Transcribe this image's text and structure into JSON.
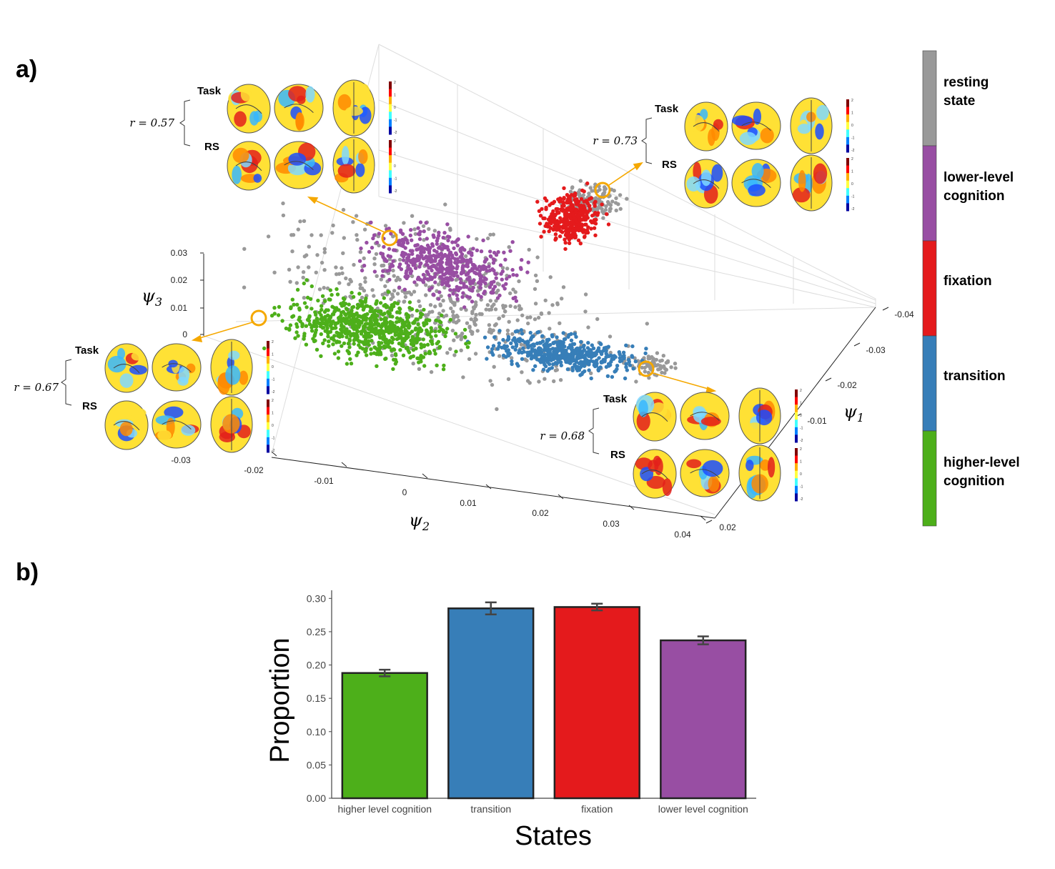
{
  "panel_a_label": "a)",
  "panel_b_label": "b)",
  "colors": {
    "resting": "#999999",
    "lower": "#984ea3",
    "fixation": "#e41a1c",
    "transition": "#377eb8",
    "higher": "#4daf1a",
    "highlight": "#f5a800"
  },
  "chart_data": [
    {
      "type": "scatter",
      "xlabel": "ψ2",
      "ylabel": "ψ1",
      "zlabel": "ψ3",
      "psi2_ticks": [
        "-0.03",
        "-0.02",
        "-0.01",
        "0",
        "0.01",
        "0.02",
        "0.03",
        "0.04"
      ],
      "psi1_ticks": [
        "-0.04",
        "-0.03",
        "-0.02",
        "-0.01",
        "0.02"
      ],
      "psi3_ticks": [
        "0.03",
        "0.02",
        "0.01",
        "0"
      ],
      "legend": [
        "resting state",
        "lower-level cognition",
        "fixation",
        "transition",
        "higher-level cognition"
      ],
      "legend_lines": [
        [
          "resting",
          "state"
        ],
        [
          "lower-level",
          "cognition"
        ],
        [
          "fixation"
        ],
        [
          "transition"
        ],
        [
          "higher-level",
          "cognition"
        ]
      ],
      "insets": [
        {
          "r": "r = 0.57",
          "task": "Task",
          "rs": "RS"
        },
        {
          "r": "r = 0.73",
          "task": "Task",
          "rs": "RS"
        },
        {
          "r": "r = 0.67",
          "task": "Task",
          "rs": "RS"
        },
        {
          "r": "r = 0.68",
          "task": "Task",
          "rs": "RS"
        }
      ],
      "colorbar_ticks": [
        "2",
        "1",
        "0",
        "-1",
        "-2"
      ]
    },
    {
      "type": "bar",
      "categories": [
        "higher level cognition",
        "transition",
        "fixation",
        "lower level cognition"
      ],
      "values": [
        0.188,
        0.285,
        0.287,
        0.237
      ],
      "errors": [
        0.005,
        0.009,
        0.005,
        0.006
      ],
      "xlabel": "States",
      "ylabel": "Proportion",
      "ylim": [
        0,
        0.31
      ],
      "yticks": [
        "0.00",
        "0.05",
        "0.10",
        "0.15",
        "0.20",
        "0.25",
        "0.30"
      ]
    }
  ]
}
